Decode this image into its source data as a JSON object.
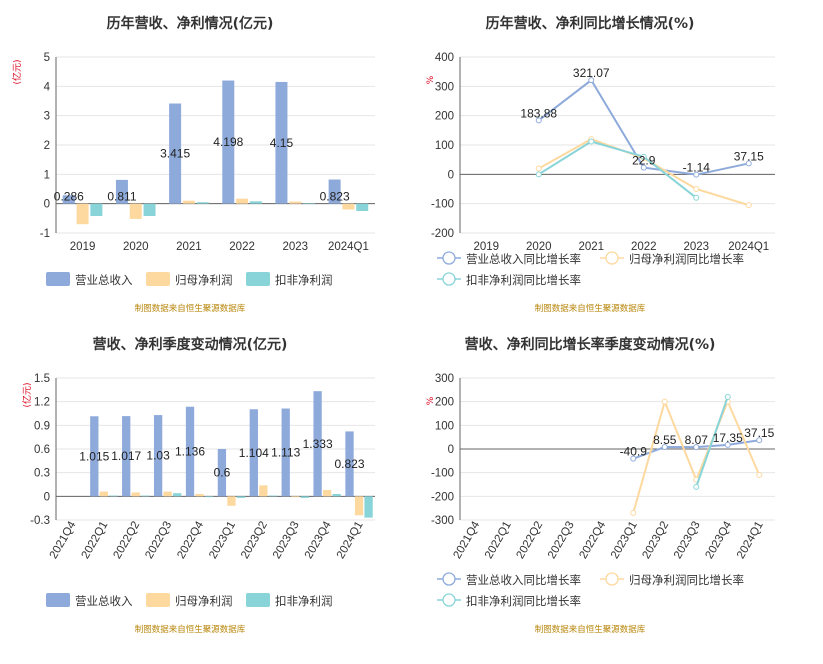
{
  "colors": {
    "revenue": "#8eaadb",
    "netprofit": "#fdd9a0",
    "deducted": "#88d4d8",
    "axis": "#666666",
    "grid": "#e6e6e6",
    "unit": "#d9001b",
    "source": "#b8860b"
  },
  "source_note": "制图数据来自恒生聚源数据库",
  "chart_data": [
    {
      "type": "bar",
      "title": "历年营收、净利情况(亿元)",
      "ylabel": "(亿元)",
      "ylim": [
        -1,
        5
      ],
      "yticks": [
        "5",
        "4",
        "3",
        "2",
        "1",
        "0",
        "-1"
      ],
      "categories": [
        "2019",
        "2020",
        "2021",
        "2022",
        "2023",
        "2024Q1"
      ],
      "series": [
        {
          "name": "营业总收入",
          "values": [
            0.286,
            0.811,
            3.415,
            4.198,
            4.15,
            0.823
          ],
          "labels": [
            "0.286",
            "0.811",
            "3.415",
            "4.198",
            "4.15",
            "0.823"
          ]
        },
        {
          "name": "归母净利润",
          "values": [
            -0.7,
            -0.52,
            0.1,
            0.17,
            0.07,
            -0.2
          ]
        },
        {
          "name": "扣非净利润",
          "values": [
            -0.42,
            -0.42,
            0.05,
            0.08,
            0.02,
            -0.25
          ]
        }
      ],
      "legend": "bottom-left",
      "grid": true
    },
    {
      "type": "line",
      "title": "历年营收、净利同比增长情况(%)",
      "ylabel": "%",
      "ylim": [
        -200,
        400
      ],
      "yticks": [
        "400",
        "300",
        "200",
        "100",
        "0",
        "-100",
        "-200"
      ],
      "categories": [
        "2019",
        "2020",
        "2021",
        "2022",
        "2023",
        "2024Q1"
      ],
      "series": [
        {
          "name": "营业总收入同比增长率",
          "values": [
            null,
            183.88,
            321.07,
            22.9,
            -1.14,
            37.15
          ],
          "labels": [
            "",
            "183.88",
            "321.07",
            "22.9",
            "-1.14",
            "37.15"
          ]
        },
        {
          "name": "归母净利润同比增长率",
          "values": [
            null,
            20,
            120,
            55,
            -50,
            -105
          ]
        },
        {
          "name": "扣非净利润同比增长率",
          "values": [
            null,
            0,
            112,
            60,
            -80,
            null
          ]
        }
      ],
      "legend": "bottom-left",
      "grid": true
    },
    {
      "type": "bar",
      "title": "营收、净利季度变动情况(亿元)",
      "ylabel": "(亿元)",
      "ylim": [
        -0.3,
        1.5
      ],
      "yticks": [
        "1.5",
        "1.2",
        "0.9",
        "0.6",
        "0.3",
        "0",
        "-0.3"
      ],
      "categories": [
        "2021Q4",
        "2022Q1",
        "2022Q2",
        "2022Q3",
        "2022Q4",
        "2023Q1",
        "2023Q2",
        "2023Q3",
        "2023Q4",
        "2024Q1"
      ],
      "series": [
        {
          "name": "营业总收入",
          "values": [
            null,
            1.015,
            1.017,
            1.03,
            1.136,
            0.6,
            1.104,
            1.113,
            1.333,
            0.823
          ],
          "labels": [
            "",
            "1.015",
            "1.017",
            "1.03",
            "1.136",
            "0.6",
            "1.104",
            "1.113",
            "1.333",
            "0.823"
          ]
        },
        {
          "name": "归母净利润",
          "values": [
            null,
            0.06,
            0.05,
            0.06,
            0.03,
            -0.12,
            0.14,
            -0.01,
            0.08,
            -0.24
          ]
        },
        {
          "name": "扣非净利润",
          "values": [
            null,
            0.01,
            0.01,
            0.04,
            -0.01,
            -0.02,
            0.01,
            -0.02,
            0.03,
            -0.27
          ]
        }
      ],
      "legend": "bottom-left",
      "grid": true
    },
    {
      "type": "line",
      "title": "营收、净利同比增长率季度变动情况(%)",
      "ylabel": "%",
      "ylim": [
        -300,
        300
      ],
      "yticks": [
        "300",
        "200",
        "100",
        "0",
        "-100",
        "-200",
        "-300"
      ],
      "categories": [
        "2021Q4",
        "2022Q1",
        "2022Q2",
        "2022Q3",
        "2022Q4",
        "2023Q1",
        "2023Q2",
        "2023Q3",
        "2023Q4",
        "2024Q1"
      ],
      "series": [
        {
          "name": "营业总收入同比增长率",
          "values": [
            null,
            null,
            null,
            null,
            null,
            -40.9,
            8.55,
            8.07,
            17.35,
            37.15
          ],
          "labels": [
            "",
            "",
            "",
            "",
            "",
            "-40.9",
            "8.55",
            "8.07",
            "17.35",
            "37.15"
          ]
        },
        {
          "name": "归母净利润同比增长率",
          "values": [
            null,
            null,
            null,
            null,
            null,
            -270,
            200,
            -130,
            200,
            -110
          ]
        },
        {
          "name": "扣非净利润同比增长率",
          "values": [
            null,
            null,
            null,
            null,
            null,
            null,
            null,
            -160,
            220,
            null
          ]
        }
      ],
      "legend": "bottom-left",
      "grid": true
    }
  ]
}
